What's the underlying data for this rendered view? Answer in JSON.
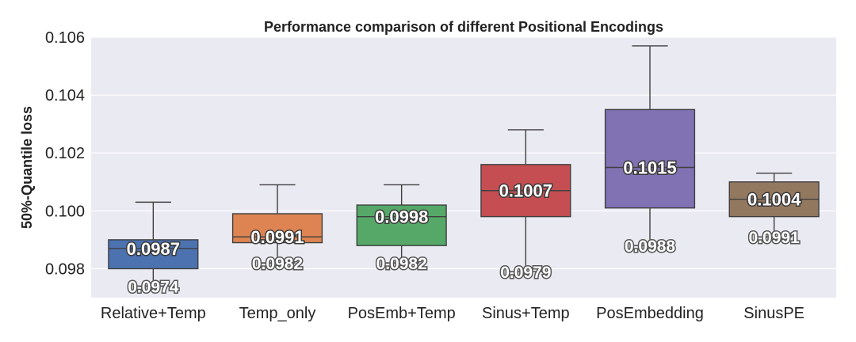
{
  "chart_data": {
    "type": "box",
    "title": "Performance comparison of different Positional Encodings",
    "xlabel": "",
    "ylabel": "50%-Quantile loss",
    "ylim": [
      0.097,
      0.106
    ],
    "yticks": [
      0.098,
      0.1,
      0.102,
      0.104,
      0.106
    ],
    "ytick_labels": [
      "0.098",
      "0.100",
      "0.102",
      "0.104",
      "0.106"
    ],
    "grid": true,
    "categories": [
      "Relative+Temp",
      "Temp_only",
      "PosEmb+Temp",
      "Sinus+Temp",
      "PosEmbedding",
      "SinusPE"
    ],
    "boxes": [
      {
        "category": "Relative+Temp",
        "whisker_low": 0.0974,
        "q1": 0.098,
        "median": 0.0987,
        "q3": 0.099,
        "whisker_high": 0.1003,
        "median_label": "0.0987",
        "min_label": "0.0974",
        "color": "#4c72b0"
      },
      {
        "category": "Temp_only",
        "whisker_low": 0.0982,
        "q1": 0.0989,
        "median": 0.0991,
        "q3": 0.0999,
        "whisker_high": 0.1009,
        "median_label": "0.0991",
        "min_label": "0.0982",
        "color": "#dd8452"
      },
      {
        "category": "PosEmb+Temp",
        "whisker_low": 0.0982,
        "q1": 0.0988,
        "median": 0.0998,
        "q3": 0.1002,
        "whisker_high": 0.1009,
        "median_label": "0.0998",
        "min_label": "0.0982",
        "color": "#55a868"
      },
      {
        "category": "Sinus+Temp",
        "whisker_low": 0.0979,
        "q1": 0.0998,
        "median": 0.1007,
        "q3": 0.1016,
        "whisker_high": 0.1028,
        "median_label": "0.1007",
        "min_label": "0.0979",
        "color": "#c44e52"
      },
      {
        "category": "PosEmbedding",
        "whisker_low": 0.0988,
        "q1": 0.1001,
        "median": 0.1015,
        "q3": 0.1035,
        "whisker_high": 0.1057,
        "median_label": "0.1015",
        "min_label": "0.0988",
        "color": "#8172b3"
      },
      {
        "category": "SinusPE",
        "whisker_low": 0.0991,
        "q1": 0.0998,
        "median": 0.1004,
        "q3": 0.101,
        "whisker_high": 0.1013,
        "median_label": "0.1004",
        "min_label": "0.0991",
        "color": "#937860"
      }
    ],
    "plot_background": "#eaeaf2",
    "grid_color": "#ffffff",
    "line_color": "#3f3f3f"
  }
}
